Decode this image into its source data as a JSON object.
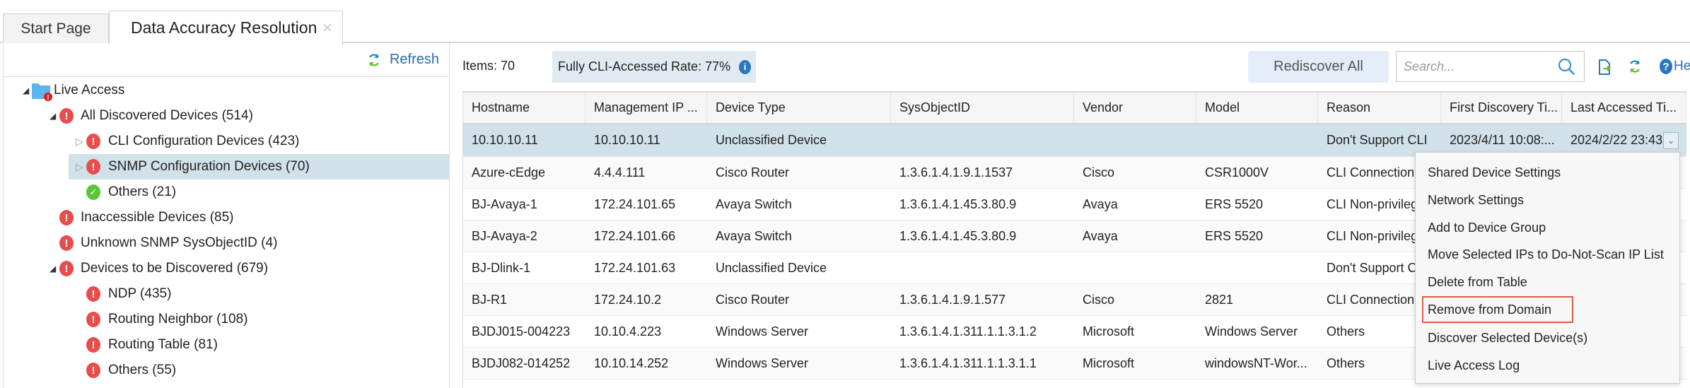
{
  "tabs": [
    {
      "label": "Start Page"
    },
    {
      "label": "Data Accuracy Resolution",
      "close": "×"
    }
  ],
  "left": {
    "refresh_label": "Refresh",
    "tree": [
      {
        "label": "Live Access",
        "level": 0,
        "icon": "folder-error-icon",
        "expanded": true
      },
      {
        "label": "All Discovered Devices (514)",
        "level": 1,
        "icon": "error-icon",
        "expanded": true
      },
      {
        "label": "CLI Configuration Devices (423)",
        "level": 2,
        "icon": "error-icon",
        "expanded": false
      },
      {
        "label": "SNMP Configuration Devices (70)",
        "level": 2,
        "icon": "error-icon",
        "expanded": false,
        "selected": true
      },
      {
        "label": "Others (21)",
        "level": 2,
        "icon": "check-icon"
      },
      {
        "label": "Inaccessible Devices (85)",
        "level": 1,
        "icon": "error-icon"
      },
      {
        "label": "Unknown SNMP SysObjectID (4)",
        "level": 1,
        "icon": "error-icon"
      },
      {
        "label": "Devices to be Discovered (679)",
        "level": 1,
        "icon": "error-icon",
        "expanded": true
      },
      {
        "label": "NDP (435)",
        "level": 2,
        "icon": "error-icon"
      },
      {
        "label": "Routing Neighbor (108)",
        "level": 2,
        "icon": "error-icon"
      },
      {
        "label": "Routing Table (81)",
        "level": 2,
        "icon": "error-icon"
      },
      {
        "label": "Others (55)",
        "level": 2,
        "icon": "error-icon"
      }
    ]
  },
  "toolbar": {
    "items": "Items: 70",
    "rate": "Fully CLI-Accessed Rate: 77%",
    "rediscover": "Rediscover All",
    "search_placeholder": "Search...",
    "help": "He"
  },
  "table": {
    "columns": [
      "Hostname",
      "Management IP ...",
      "Device Type",
      "SysObjectID",
      "Vendor",
      "Model",
      "Reason",
      "First Discovery Ti...",
      "Last Accessed Ti..."
    ],
    "rows": [
      [
        "10.10.10.11",
        "10.10.10.11",
        "Unclassified Device",
        "",
        "",
        "",
        "Don't Support CLI",
        "2023/4/11 10:08:...",
        "2024/2/22 23:43"
      ],
      [
        "Azure-cEdge",
        "4.4.4.111",
        "Cisco Router",
        "1.3.6.1.4.1.9.1.1537",
        "Cisco",
        "CSR1000V",
        "CLI Connection",
        "",
        ""
      ],
      [
        "BJ-Avaya-1",
        "172.24.101.65",
        "Avaya Switch",
        "1.3.6.1.4.1.45.3.80.9",
        "Avaya",
        "ERS 5520",
        "CLI Non-privileg",
        "",
        ""
      ],
      [
        "BJ-Avaya-2",
        "172.24.101.66",
        "Avaya Switch",
        "1.3.6.1.4.1.45.3.80.9",
        "Avaya",
        "ERS 5520",
        "CLI Non-privileg",
        "",
        ""
      ],
      [
        "BJ-Dlink-1",
        "172.24.101.63",
        "Unclassified Device",
        "",
        "",
        "",
        "Don't Support C",
        "",
        ""
      ],
      [
        "BJ-R1",
        "172.24.10.2",
        "Cisco Router",
        "1.3.6.1.4.1.9.1.577",
        "Cisco",
        "2821",
        "CLI Connection",
        "",
        ""
      ],
      [
        "BJDJ015-004223",
        "10.10.4.223",
        "Windows Server",
        "1.3.6.1.4.1.311.1.1.3.1.2",
        "Microsoft",
        "Windows Server",
        "Others",
        "",
        ""
      ],
      [
        "BJDJ082-014252",
        "10.10.14.252",
        "Windows Server",
        "1.3.6.1.4.1.311.1.1.3.1.1",
        "Microsoft",
        "windowsNT-Wor...",
        "Others",
        "",
        ""
      ]
    ]
  },
  "context_menu": {
    "items": [
      "Shared Device Settings",
      "Network Settings",
      "Add to Device Group",
      "Move Selected IPs to Do-Not-Scan IP List",
      "Delete from Table",
      "Remove from Domain",
      "Discover Selected Device(s)",
      "Live Access Log"
    ],
    "highlighted": "Remove from Domain"
  },
  "colors": {
    "selected": "#d0e1ea",
    "error": "#e84c4c",
    "ok": "#5cc534",
    "link": "#2a6eb0",
    "highlight_border": "#d9604a"
  }
}
